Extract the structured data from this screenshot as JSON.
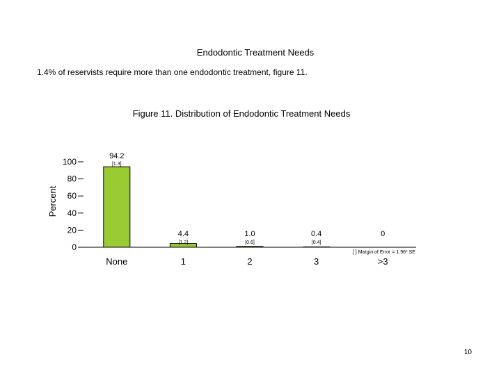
{
  "page": {
    "title": "Endodontic Treatment Needs",
    "subtitle": "1.4% of reservists require more than one endodontic treatment, figure 11.",
    "page_number": "10"
  },
  "chart_data": {
    "type": "bar",
    "title": "Figure 11.  Distribution of Endodontic Treatment Needs",
    "xlabel": "",
    "ylabel": "Percent",
    "categories": [
      "None",
      "1",
      "2",
      "3",
      ">3"
    ],
    "values": [
      94.2,
      4.4,
      1.0,
      0.4,
      0
    ],
    "value_labels": [
      "94.2",
      "4.4",
      "1.0",
      "0.4",
      "0"
    ],
    "margins_of_error": [
      "[1.3]",
      "[1.2]",
      "[0.6]",
      "[0.4]",
      ""
    ],
    "ylim": [
      0,
      100
    ],
    "yticks": [
      0,
      20,
      40,
      60,
      80,
      100
    ],
    "grid": false,
    "footnote": "[ ] Margin of Error = 1.96* SE",
    "colors": {
      "bar": "#99cc33",
      "bar_stroke": "#000000"
    }
  }
}
